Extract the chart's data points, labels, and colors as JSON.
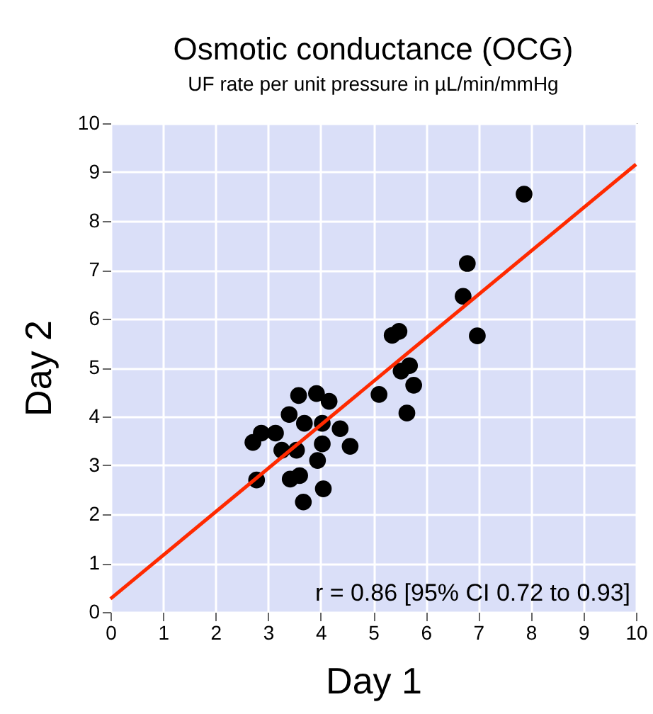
{
  "chart_data": {
    "type": "scatter",
    "title": "Osmotic conductance (OCG)",
    "subtitle": "UF rate per unit pressure in µL/min/mmHg",
    "xlabel": "Day 1",
    "ylabel": "Day 2",
    "xlim": [
      0,
      10
    ],
    "ylim": [
      0,
      10
    ],
    "xticks": [
      0,
      1,
      2,
      3,
      4,
      5,
      6,
      7,
      8,
      9,
      10
    ],
    "yticks": [
      0,
      1,
      2,
      3,
      4,
      5,
      6,
      7,
      8,
      9,
      10
    ],
    "grid": true,
    "marker": "circle",
    "annotations": [
      "r = 0.86 [95% CI 0.72 to 0.93]"
    ],
    "series": [
      {
        "color": "#000000",
        "x": [
          7.87,
          6.79,
          6.71,
          6.98,
          5.36,
          5.49,
          5.53,
          5.69,
          5.77,
          5.11,
          5.64,
          3.58,
          3.92,
          4.16,
          3.4,
          3.69,
          4.03,
          4.37,
          2.87,
          3.14,
          2.71,
          3.26,
          3.54,
          4.03,
          4.56,
          3.94,
          2.78,
          3.42,
          3.6,
          4.05,
          3.67
        ],
        "values": [
          8.55,
          7.13,
          6.46,
          5.65,
          5.66,
          5.74,
          4.93,
          5.04,
          4.64,
          4.45,
          4.07,
          4.43,
          4.47,
          4.31,
          4.04,
          3.86,
          3.86,
          3.75,
          3.66,
          3.66,
          3.47,
          3.31,
          3.31,
          3.44,
          3.39,
          3.1,
          2.7,
          2.72,
          2.79,
          2.52,
          2.25
        ]
      },
      {
        "type": "line",
        "marker": "none",
        "color": "#ff2a00",
        "x": [
          0,
          10
        ],
        "values": [
          0.27,
          9.16
        ]
      }
    ]
  }
}
